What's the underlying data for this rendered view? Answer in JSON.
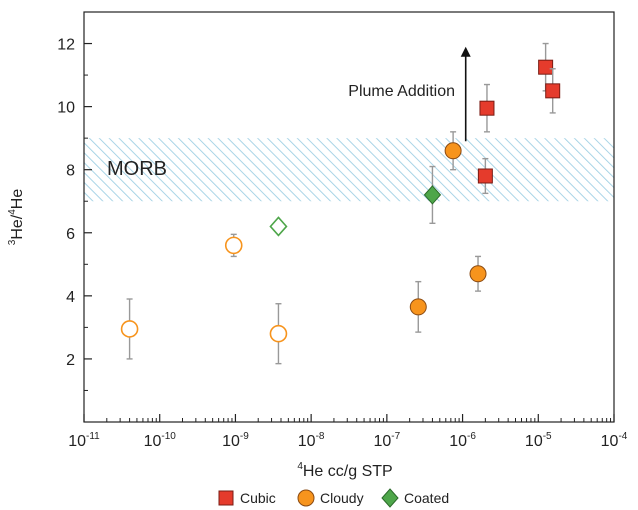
{
  "chart_data": {
    "type": "scatter",
    "xlabel_sup": "4",
    "xlabel_rest": "He cc/g STP",
    "ylabel_sup1": "3",
    "ylabel_mid": "He/",
    "ylabel_sup2": "4",
    "ylabel_end": "He",
    "x_scale": "log",
    "xlim": [
      1e-11,
      0.0001
    ],
    "ylim": [
      0,
      13
    ],
    "x_ticks": [
      {
        "base": "10",
        "exp": "-11"
      },
      {
        "base": "10",
        "exp": "-10"
      },
      {
        "base": "10",
        "exp": "-9"
      },
      {
        "base": "10",
        "exp": "-8"
      },
      {
        "base": "10",
        "exp": "-7"
      },
      {
        "base": "10",
        "exp": "-6"
      },
      {
        "base": "10",
        "exp": "-5"
      },
      {
        "base": "10",
        "exp": "-4"
      }
    ],
    "y_ticks": [
      "2",
      "4",
      "6",
      "8",
      "10",
      "12"
    ],
    "band": {
      "label": "MORB",
      "y_min": 7.0,
      "y_max": 9.0,
      "color": "#9fd0e4"
    },
    "annotation": {
      "text": "Plume Addition",
      "x": 1.1e-06,
      "y_from": 8.9,
      "y_to": 11.9
    },
    "legend": {
      "position": "bottom-center"
    },
    "series": [
      {
        "name": "Cubic",
        "marker": "square",
        "color": "#e53b2c",
        "points": [
          {
            "x": 2.1e-06,
            "y": 9.95,
            "err": 0.75
          },
          {
            "x": 2e-06,
            "y": 7.8,
            "err": 0.55
          },
          {
            "x": 1.25e-05,
            "y": 11.25,
            "err": 0.75
          },
          {
            "x": 1.55e-05,
            "y": 10.5,
            "err": 0.7
          }
        ]
      },
      {
        "name": "Cloudy",
        "marker": "circle",
        "color": "#f7941d",
        "points": [
          {
            "x": 4e-11,
            "y": 2.95,
            "err": 0.95,
            "hollow": true
          },
          {
            "x": 9.5e-10,
            "y": 5.6,
            "err": 0.35,
            "hollow": true
          },
          {
            "x": 3.7e-09,
            "y": 2.8,
            "err": 0.95,
            "hollow": true
          },
          {
            "x": 2.6e-07,
            "y": 3.65,
            "err": 0.8,
            "hollow": false
          },
          {
            "x": 7.5e-07,
            "y": 8.6,
            "err": 0.6,
            "hollow": false
          },
          {
            "x": 1.6e-06,
            "y": 4.7,
            "err": 0.55,
            "hollow": false
          }
        ]
      },
      {
        "name": "Coated",
        "marker": "diamond",
        "color": "#4ea64a",
        "points": [
          {
            "x": 3.7e-09,
            "y": 6.2,
            "err": 0,
            "hollow": true
          },
          {
            "x": 4e-07,
            "y": 7.2,
            "err": 0.9,
            "hollow": false
          }
        ]
      }
    ]
  }
}
